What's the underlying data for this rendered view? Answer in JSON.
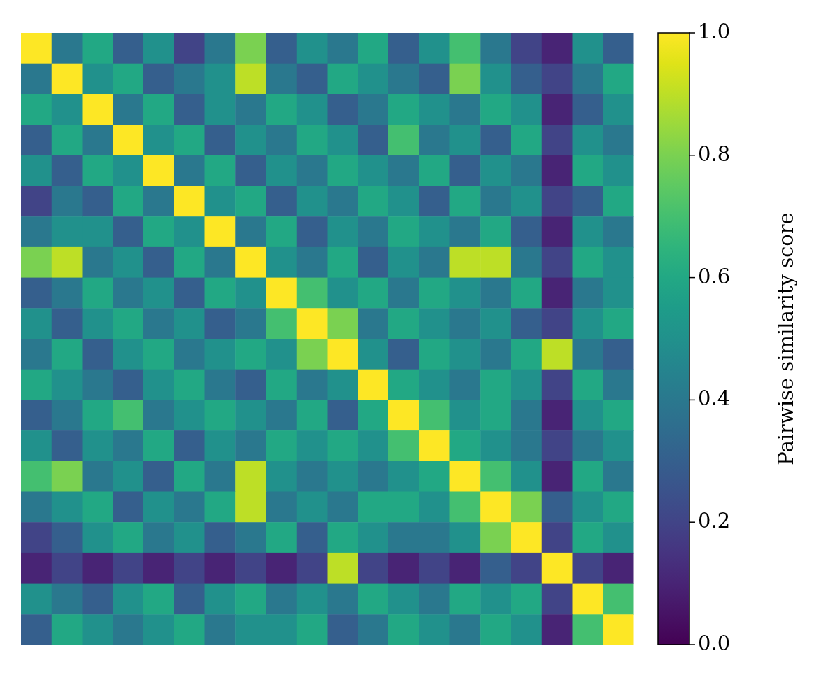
{
  "chart_data": {
    "type": "heatmap",
    "clabel": "Pairwise similarity score",
    "clim": [
      0,
      1
    ],
    "cticks": [
      {
        "value": 0,
        "label": "0.0"
      },
      {
        "value": 0.2,
        "label": "0.2"
      },
      {
        "value": 0.4,
        "label": "0.4"
      },
      {
        "value": 0.6,
        "label": "0.6"
      },
      {
        "value": 0.8,
        "label": "0.8"
      },
      {
        "value": 1,
        "label": "1.0"
      }
    ],
    "categories": [
      null,
      null,
      null,
      null,
      null,
      null,
      null,
      null,
      null,
      null,
      null,
      null,
      null,
      null,
      null,
      null,
      null,
      null,
      null,
      null
    ],
    "y_categories": [
      null,
      null,
      null,
      null,
      null,
      null,
      null,
      null,
      null,
      null,
      null,
      null,
      null,
      null,
      null,
      null,
      null,
      null,
      null,
      null
    ],
    "cells": [
      [
        1,
        0.4,
        0.6,
        0.3,
        0.5,
        0.2,
        0.4,
        0.8,
        0.3,
        0.5,
        0.4,
        0.6,
        0.3,
        0.5,
        0.7,
        0.4,
        0.2,
        0.1,
        0.5,
        0.3
      ],
      [
        0.4,
        1,
        0.5,
        0.6,
        0.3,
        0.4,
        0.5,
        0.9,
        0.4,
        0.3,
        0.6,
        0.5,
        0.4,
        0.3,
        0.8,
        0.5,
        0.3,
        0.2,
        0.4,
        0.6
      ],
      [
        0.6,
        0.5,
        1,
        0.4,
        0.6,
        0.3,
        0.5,
        0.4,
        0.6,
        0.5,
        0.3,
        0.4,
        0.6,
        0.5,
        0.4,
        0.6,
        0.5,
        0.1,
        0.3,
        0.5
      ],
      [
        0.3,
        0.6,
        0.4,
        1,
        0.5,
        0.6,
        0.3,
        0.5,
        0.4,
        0.6,
        0.5,
        0.3,
        0.7,
        0.4,
        0.5,
        0.3,
        0.6,
        0.2,
        0.5,
        0.4
      ],
      [
        0.5,
        0.3,
        0.6,
        0.5,
        1,
        0.4,
        0.6,
        0.3,
        0.5,
        0.4,
        0.6,
        0.5,
        0.4,
        0.6,
        0.3,
        0.5,
        0.4,
        0.1,
        0.6,
        0.5
      ],
      [
        0.2,
        0.4,
        0.3,
        0.6,
        0.4,
        1,
        0.5,
        0.6,
        0.3,
        0.5,
        0.4,
        0.6,
        0.5,
        0.3,
        0.6,
        0.4,
        0.5,
        0.2,
        0.3,
        0.6
      ],
      [
        0.4,
        0.5,
        0.5,
        0.3,
        0.6,
        0.5,
        1,
        0.4,
        0.6,
        0.3,
        0.5,
        0.4,
        0.6,
        0.5,
        0.4,
        0.6,
        0.3,
        0.1,
        0.5,
        0.4
      ],
      [
        0.8,
        0.9,
        0.4,
        0.5,
        0.3,
        0.6,
        0.4,
        1,
        0.5,
        0.4,
        0.6,
        0.3,
        0.5,
        0.4,
        0.9,
        0.9,
        0.4,
        0.2,
        0.6,
        0.5
      ],
      [
        0.3,
        0.4,
        0.6,
        0.4,
        0.5,
        0.3,
        0.6,
        0.5,
        1,
        0.7,
        0.5,
        0.6,
        0.4,
        0.6,
        0.5,
        0.4,
        0.6,
        0.1,
        0.4,
        0.5
      ],
      [
        0.5,
        0.3,
        0.5,
        0.6,
        0.4,
        0.5,
        0.3,
        0.4,
        0.7,
        1,
        0.8,
        0.4,
        0.6,
        0.5,
        0.4,
        0.5,
        0.3,
        0.2,
        0.5,
        0.6
      ],
      [
        0.4,
        0.6,
        0.3,
        0.5,
        0.6,
        0.4,
        0.5,
        0.6,
        0.5,
        0.8,
        1,
        0.5,
        0.3,
        0.6,
        0.5,
        0.4,
        0.6,
        0.9,
        0.4,
        0.3
      ],
      [
        0.6,
        0.5,
        0.4,
        0.3,
        0.5,
        0.6,
        0.4,
        0.3,
        0.6,
        0.4,
        0.5,
        1,
        0.6,
        0.5,
        0.4,
        0.6,
        0.5,
        0.2,
        0.6,
        0.4
      ],
      [
        0.3,
        0.4,
        0.6,
        0.7,
        0.4,
        0.5,
        0.6,
        0.5,
        0.4,
        0.6,
        0.3,
        0.6,
        1,
        0.7,
        0.5,
        0.6,
        0.4,
        0.1,
        0.5,
        0.6
      ],
      [
        0.5,
        0.3,
        0.5,
        0.4,
        0.6,
        0.3,
        0.5,
        0.4,
        0.6,
        0.5,
        0.6,
        0.5,
        0.7,
        1,
        0.6,
        0.5,
        0.4,
        0.2,
        0.4,
        0.5
      ],
      [
        0.7,
        0.8,
        0.4,
        0.5,
        0.3,
        0.6,
        0.4,
        0.9,
        0.5,
        0.4,
        0.5,
        0.4,
        0.5,
        0.6,
        1,
        0.7,
        0.5,
        0.1,
        0.6,
        0.4
      ],
      [
        0.4,
        0.5,
        0.6,
        0.3,
        0.5,
        0.4,
        0.6,
        0.9,
        0.4,
        0.5,
        0.4,
        0.6,
        0.6,
        0.5,
        0.7,
        1,
        0.8,
        0.3,
        0.5,
        0.6
      ],
      [
        0.2,
        0.3,
        0.5,
        0.6,
        0.4,
        0.5,
        0.3,
        0.4,
        0.6,
        0.3,
        0.6,
        0.5,
        0.4,
        0.4,
        0.5,
        0.8,
        1,
        0.2,
        0.6,
        0.5
      ],
      [
        0.1,
        0.2,
        0.1,
        0.2,
        0.1,
        0.2,
        0.1,
        0.2,
        0.1,
        0.2,
        0.9,
        0.2,
        0.1,
        0.2,
        0.1,
        0.3,
        0.2,
        1,
        0.2,
        0.1
      ],
      [
        0.5,
        0.4,
        0.3,
        0.5,
        0.6,
        0.3,
        0.5,
        0.6,
        0.4,
        0.5,
        0.4,
        0.6,
        0.5,
        0.4,
        0.6,
        0.5,
        0.6,
        0.2,
        1,
        0.7
      ],
      [
        0.3,
        0.6,
        0.5,
        0.4,
        0.5,
        0.6,
        0.4,
        0.5,
        0.5,
        0.6,
        0.3,
        0.4,
        0.6,
        0.5,
        0.4,
        0.6,
        0.5,
        0.1,
        0.7,
        1
      ]
    ]
  }
}
